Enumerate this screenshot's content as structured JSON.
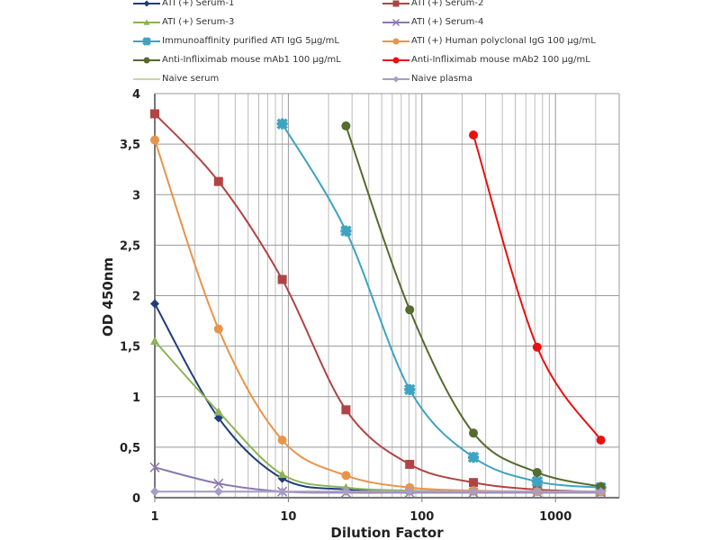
{
  "chart_data": {
    "type": "line",
    "title": "",
    "xlabel": "Dilution Factor",
    "ylabel": "OD 450nm",
    "xscale": "log",
    "xlim": [
      1,
      3000
    ],
    "ylim": [
      0,
      4
    ],
    "xticks": [
      {
        "v": 1,
        "label": "1"
      },
      {
        "v": 10,
        "label": "10"
      },
      {
        "v": 100,
        "label": "100"
      },
      {
        "v": 1000,
        "label": "1000"
      }
    ],
    "yticks": [
      {
        "v": 0,
        "label": "0"
      },
      {
        "v": 0.5,
        "label": "0,5"
      },
      {
        "v": 1,
        "label": "1"
      },
      {
        "v": 1.5,
        "label": "1,5"
      },
      {
        "v": 2,
        "label": "2"
      },
      {
        "v": 2.5,
        "label": "2,5"
      },
      {
        "v": 3,
        "label": "3"
      },
      {
        "v": 3.5,
        "label": "3,5"
      },
      {
        "v": 4,
        "label": "4"
      }
    ],
    "grid": true,
    "legend_position": "top",
    "series": [
      {
        "name": "ATI (+) Serum-1",
        "color": "#1f3d7a",
        "marker": "diamond",
        "x": [
          1,
          3,
          9,
          27,
          81,
          243,
          729,
          2187
        ],
        "y": [
          1.92,
          0.79,
          0.19,
          0.08,
          0.06,
          0.06,
          0.06,
          0.06
        ]
      },
      {
        "name": "ATI (+) Serum-2",
        "color": "#b04444",
        "marker": "square",
        "x": [
          1,
          3,
          9,
          27,
          81,
          243,
          729,
          2187
        ],
        "y": [
          3.8,
          3.13,
          2.16,
          0.87,
          0.33,
          0.15,
          0.08,
          0.06
        ]
      },
      {
        "name": "ATI (+) Serum-3",
        "color": "#8db356",
        "marker": "triangle",
        "x": [
          1,
          3,
          9,
          27,
          81,
          243,
          729,
          2187
        ],
        "y": [
          1.55,
          0.85,
          0.23,
          0.1,
          0.07,
          0.06,
          0.06,
          0.06
        ]
      },
      {
        "name": "ATI (+) Serum-4",
        "color": "#8a78b0",
        "marker": "x",
        "x": [
          1,
          3,
          9,
          27,
          81,
          243,
          729,
          2187
        ],
        "y": [
          0.3,
          0.14,
          0.06,
          0.05,
          0.05,
          0.05,
          0.05,
          0.05
        ]
      },
      {
        "name": "Immunoaffinity purified ATI IgG 5µg/mL",
        "color": "#3ea3c0",
        "marker": "star",
        "x": [
          9,
          27,
          81,
          243,
          729,
          2187
        ],
        "y": [
          3.7,
          2.64,
          1.07,
          0.4,
          0.16,
          0.1
        ]
      },
      {
        "name": "ATI (+) Human polyclonal IgG 100 µg/mL",
        "color": "#e8944a",
        "marker": "circle",
        "x": [
          1,
          3,
          9,
          27,
          81,
          243,
          729,
          2187
        ],
        "y": [
          3.54,
          1.67,
          0.57,
          0.22,
          0.1,
          0.07,
          0.06,
          0.06
        ]
      },
      {
        "name": "Anti-Infliximab mouse mAb1 100 µg/mL",
        "color": "#556b2f",
        "marker": "circle",
        "x": [
          27,
          81,
          243,
          729,
          2187
        ],
        "y": [
          3.68,
          1.86,
          0.64,
          0.25,
          0.11
        ]
      },
      {
        "name": "Anti-Infliximab mouse mAb2 100 µg/mL",
        "color": "#e81010",
        "marker": "circle",
        "x": [
          243,
          729,
          2187
        ],
        "y": [
          3.59,
          1.49,
          0.57
        ]
      },
      {
        "name": "Naive serum",
        "color": "#c9d4a8",
        "marker": "none",
        "x": [
          1,
          3,
          9,
          27,
          81,
          243,
          729,
          2187
        ],
        "y": [
          0.06,
          0.06,
          0.06,
          0.06,
          0.06,
          0.06,
          0.06,
          0.06
        ]
      },
      {
        "name": "Naive plasma",
        "color": "#a89cc8",
        "marker": "diamond",
        "x": [
          1,
          3,
          9,
          27,
          81,
          243,
          729,
          2187
        ],
        "y": [
          0.06,
          0.06,
          0.06,
          0.06,
          0.06,
          0.06,
          0.06,
          0.06
        ]
      }
    ]
  }
}
